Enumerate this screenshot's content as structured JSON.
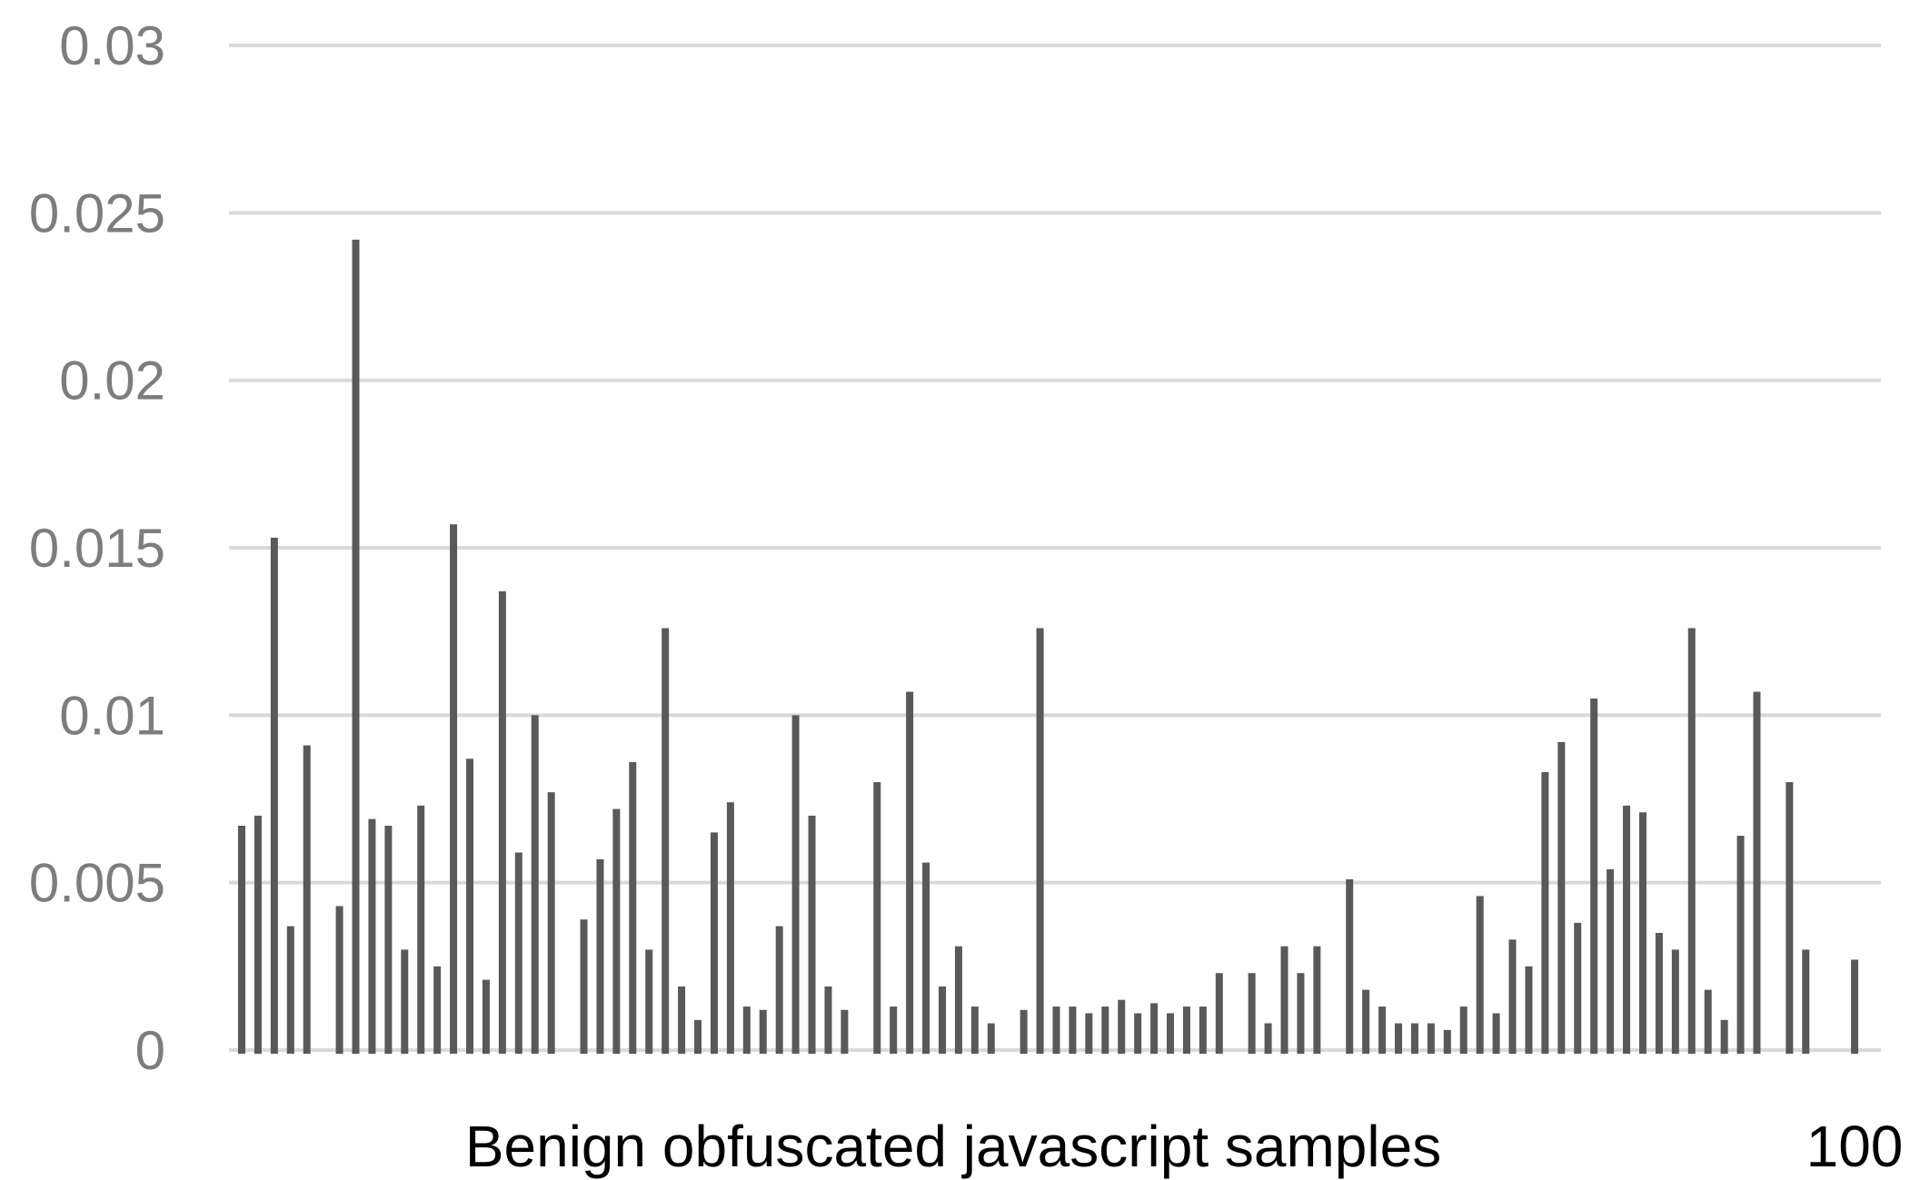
{
  "chart_data": {
    "type": "bar",
    "title": "",
    "xlabel": "Benign obfuscated javascript samples",
    "x_max_label": "100",
    "ylabel": "",
    "x_count": 100,
    "ylim": [
      0,
      0.03
    ],
    "y_ticks": [
      0,
      0.005,
      0.01,
      0.015,
      0.02,
      0.025,
      0.03
    ],
    "y_tick_labels": [
      "0",
      "0.005",
      "0.01",
      "0.015",
      "0.02",
      "0.025",
      "0.03"
    ],
    "grid": true,
    "legend": false,
    "bar_color": "#595959",
    "gridline_color": "#d9d9d9",
    "axis_label_color": "#7d7d7d",
    "text_color": "#000000",
    "background_color": "#ffffff",
    "values": [
      0.0067,
      0.007,
      0.0153,
      0.0037,
      0.0091,
      0,
      0.0043,
      0.0242,
      0.0069,
      0.0067,
      0.003,
      0.0073,
      0.0025,
      0.0157,
      0.0087,
      0.0021,
      0.0137,
      0.0059,
      0.01,
      0.0077,
      0,
      0.0039,
      0.0057,
      0.0072,
      0.0086,
      0.003,
      0.0126,
      0.0019,
      0.0009,
      0.0065,
      0.0074,
      0.0013,
      0.0012,
      0.0037,
      0.01,
      0.007,
      0.0019,
      0.0012,
      0,
      0.008,
      0.0013,
      0.0107,
      0.0056,
      0.0019,
      0.0031,
      0.0013,
      0.0008,
      0,
      0.0012,
      0.0126,
      0.0013,
      0.0013,
      0.0011,
      0.0013,
      0.0015,
      0.0011,
      0.0014,
      0.0011,
      0.0013,
      0.0013,
      0.0023,
      0,
      0.0023,
      0.0008,
      0.0031,
      0.0023,
      0.0031,
      0,
      0.0051,
      0.0018,
      0.0013,
      0.0008,
      0.0008,
      0.0008,
      0.0006,
      0.0013,
      0.0046,
      0.0011,
      0.0033,
      0.0025,
      0.0083,
      0.0092,
      0.0038,
      0.0105,
      0.0054,
      0.0073,
      0.0071,
      0.0035,
      0.003,
      0.0126,
      0.0018,
      0.0009,
      0.0064,
      0.0107,
      0,
      0.008,
      0.003,
      0,
      0,
      0.0027
    ]
  }
}
